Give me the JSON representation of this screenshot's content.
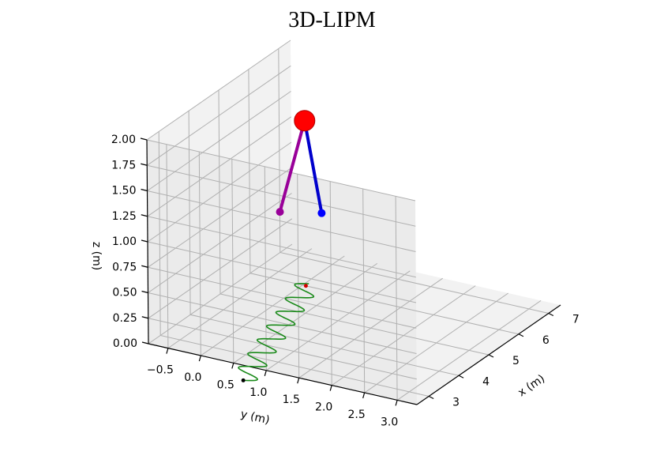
{
  "chart_data": {
    "type": "line3d",
    "title": "3D-LIPM",
    "xlabel": "x (m)",
    "ylabel": "y (m)",
    "zlabel": "z (m)",
    "x_ticks": [
      "3",
      "4",
      "5",
      "6",
      "7"
    ],
    "y_ticks": [
      "3.0",
      "2.5",
      "2.0",
      "1.5",
      "1.0",
      "0.5",
      "0.0",
      "−0.5"
    ],
    "z_ticks": [
      "0.00",
      "0.25",
      "0.50",
      "0.75",
      "1.00",
      "1.25",
      "1.50",
      "1.75",
      "2.00"
    ],
    "xlim": [
      2.6,
      7.4
    ],
    "ylim": [
      -0.8,
      3.3
    ],
    "zlim": [
      0,
      2
    ],
    "grid": true,
    "com_trajectory": {
      "color": "#1a8a1a",
      "x_start": 2.05,
      "x_end": 6.1,
      "y_start": 0.9,
      "y_end": 0.05,
      "oscillation_amplitude": 0.18,
      "oscillation_cycles": 7,
      "z": 0
    },
    "start_marker": {
      "x": 2.05,
      "y": 0.9,
      "z": 0,
      "color": "#000000"
    },
    "current_marker": {
      "x": 6.0,
      "y": 0.05,
      "z": 0,
      "color": "#d40000"
    },
    "pendulum": {
      "com": {
        "x": 6.0,
        "y": 0.05,
        "z": 1.62,
        "color": "#ff0000"
      },
      "left_foot": {
        "x": 6.0,
        "y": 0.3,
        "z": 0.75,
        "color": "#0000ff",
        "leg_color": "#0000cc"
      },
      "right_foot": {
        "x": 5.7,
        "y": -0.2,
        "z": 0.75,
        "color": "#990099",
        "leg_color": "#990099"
      }
    }
  }
}
